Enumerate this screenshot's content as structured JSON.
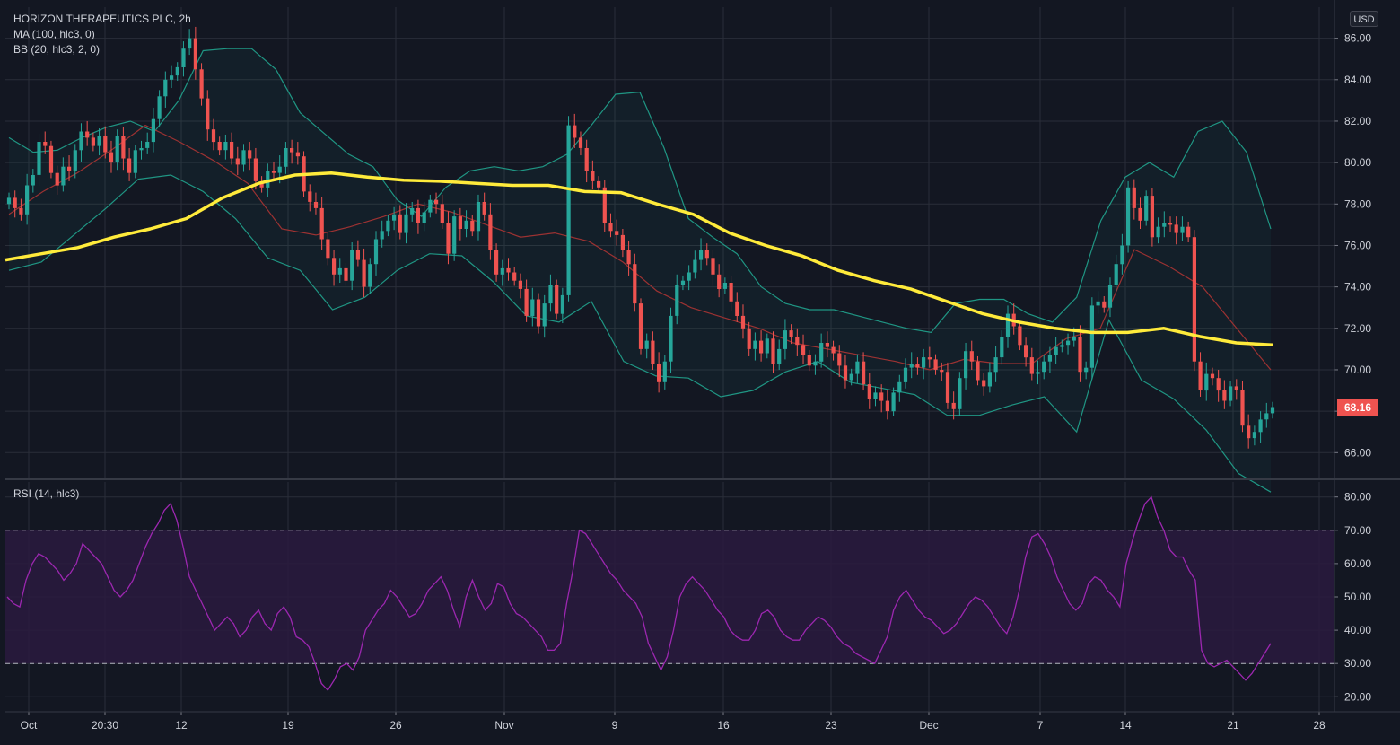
{
  "legend": {
    "symbol": "HORIZON THERAPEUTICS PLC, 2h",
    "ma": "MA (100, hlc3, 0)",
    "bb": "BB (20, hlc3, 2, 0)",
    "rsi": "RSI (14, hlc3)"
  },
  "currency_button": "USD",
  "last_price_tag": "68.16",
  "colors": {
    "background": "#131722",
    "grid": "#2a2e39",
    "up": "#26a69a",
    "down": "#ef5350",
    "ma": "#ffeb3b",
    "bb_band": "#22ab94",
    "bb_basis": "#9c3232",
    "rsi_line": "#9c27b0",
    "rsi_band_fill": "#2a1a3e"
  },
  "chart_data": [
    {
      "type": "candlestick",
      "title": "HORIZON THERAPEUTICS PLC, 2h",
      "x_ticks": [
        "Oct",
        "20:30",
        "12",
        "19",
        "26",
        "Nov",
        "9",
        "16",
        "23",
        "Dec",
        "7",
        "14",
        "21",
        "28"
      ],
      "y_ticks": [
        "86.00",
        "84.00",
        "82.00",
        "80.00",
        "78.00",
        "76.00",
        "74.00",
        "72.00",
        "70.00",
        "68.00",
        "66.00"
      ],
      "ylim": [
        64.8,
        87.5
      ],
      "last_price": 68.16,
      "grid": true,
      "candles_close": [
        78.3,
        77.8,
        77.5,
        78.9,
        79.4,
        81.0,
        80.8,
        79.5,
        78.9,
        79.8,
        79.6,
        80.6,
        81.5,
        81.2,
        80.8,
        81.3,
        80.5,
        80.0,
        81.3,
        80.2,
        79.5,
        80.6,
        80.7,
        81.0,
        82.1,
        83.2,
        84.0,
        84.2,
        84.6,
        85.5,
        86.0,
        84.5,
        83.1,
        81.6,
        81.0,
        80.6,
        81.0,
        80.2,
        79.9,
        80.6,
        80.2,
        79.1,
        78.8,
        79.6,
        79.5,
        79.8,
        80.7,
        80.5,
        80.3,
        78.6,
        78.1,
        77.8,
        76.3,
        75.4,
        74.6,
        74.9,
        74.3,
        75.8,
        75.3,
        74.0,
        75.1,
        76.3,
        76.7,
        77.2,
        77.5,
        76.6,
        77.5,
        77.8,
        77.1,
        77.6,
        78.2,
        78.0,
        77.1,
        75.6,
        77.4,
        76.8,
        77.2,
        76.7,
        78.1,
        77.5,
        75.8,
        74.6,
        74.9,
        74.7,
        74.3,
        73.9,
        72.6,
        73.4,
        72.1,
        73.2,
        74.1,
        72.7,
        73.6,
        81.8,
        81.2,
        80.7,
        79.6,
        79.1,
        78.8,
        77.1,
        76.7,
        76.5,
        75.8,
        75.1,
        73.2,
        71.0,
        71.4,
        70.3,
        69.4,
        70.4,
        72.6,
        74.1,
        74.3,
        74.7,
        75.3,
        75.8,
        75.4,
        74.6,
        73.9,
        74.2,
        73.3,
        72.6,
        72.0,
        71.0,
        71.4,
        70.8,
        71.5,
        70.3,
        71.0,
        71.9,
        71.6,
        71.2,
        70.7,
        70.2,
        70.4,
        71.3,
        71.1,
        70.8,
        70.2,
        69.5,
        69.8,
        70.4,
        69.3,
        68.6,
        68.9,
        68.5,
        68.0,
        68.9,
        69.4,
        70.1,
        70.3,
        70.1,
        70.6,
        70.5,
        70.0,
        69.9,
        68.4,
        68.1,
        69.6,
        70.9,
        70.4,
        69.5,
        69.2,
        69.9,
        70.6,
        71.6,
        72.7,
        72.1,
        71.2,
        70.6,
        69.8,
        69.9,
        70.4,
        70.7,
        71.1,
        71.2,
        71.4,
        71.6,
        69.9,
        70.1,
        73.1,
        73.3,
        73.0,
        74.1,
        75.1,
        76.0,
        78.8,
        77.8,
        77.2,
        78.4,
        76.4,
        76.9,
        77.1,
        77.0,
        76.6,
        76.9,
        76.4,
        70.4,
        69.0,
        69.8,
        69.6,
        69.0,
        68.5,
        69.2,
        69.0,
        67.3,
        66.7,
        67.0,
        67.6,
        67.9,
        68.2
      ],
      "ma100": [
        75.3,
        75.6,
        75.9,
        76.4,
        76.8,
        77.3,
        78.3,
        79.0,
        79.4,
        79.5,
        79.3,
        79.15,
        79.1,
        79.0,
        78.9,
        78.9,
        78.6,
        78.55,
        78.0,
        77.5,
        76.6,
        76.0,
        75.5,
        74.8,
        74.3,
        73.9,
        73.3,
        72.7,
        72.3,
        72.0,
        71.8,
        71.8,
        72.0,
        71.6,
        71.3,
        71.2
      ],
      "bb_upper": [
        81.2,
        80.5,
        80.6,
        81.2,
        81.7,
        82.0,
        81.5,
        83.0,
        85.4,
        85.5,
        85.5,
        84.5,
        82.4,
        81.4,
        80.4,
        79.8,
        78.2,
        77.4,
        78.8,
        79.6,
        79.8,
        79.6,
        79.8,
        80.4,
        81.8,
        83.3,
        83.4,
        80.7,
        77.3,
        76.4,
        75.6,
        74.0,
        73.2,
        72.9,
        72.9,
        72.6,
        72.3,
        72.0,
        71.8,
        73.2,
        73.4,
        73.4,
        72.7,
        72.3,
        73.5,
        77.2,
        79.3,
        80.0,
        79.3,
        81.5,
        82.0,
        80.5,
        76.8
      ],
      "bb_basis": [
        77.5,
        78.6,
        79.5,
        80.6,
        81.8,
        81.0,
        80.1,
        79.0,
        76.8,
        76.5,
        76.9,
        77.4,
        78.0,
        77.6,
        77.0,
        76.4,
        76.6,
        76.2,
        75.2,
        73.8,
        73.0,
        72.5,
        72.0,
        71.3,
        71.0,
        70.7,
        70.4,
        70.0,
        70.5,
        70.3,
        70.3,
        71.5,
        72.0,
        75.8,
        75.0,
        74.0,
        72.0,
        70.0
      ],
      "bb_lower": [
        74.8,
        75.2,
        76.5,
        77.8,
        79.2,
        79.4,
        78.6,
        77.3,
        75.4,
        74.8,
        72.9,
        73.5,
        74.8,
        75.6,
        75.5,
        74.2,
        72.6,
        72.3,
        73.3,
        70.4,
        69.7,
        69.6,
        68.7,
        69.0,
        69.9,
        70.4,
        69.4,
        69.1,
        68.8,
        67.8,
        67.8,
        68.3,
        68.7,
        67.0,
        72.4,
        69.5,
        68.6,
        67.1,
        65.0,
        64.1
      ]
    },
    {
      "type": "line",
      "title": "RSI (14, hlc3)",
      "y_ticks": [
        "80.00",
        "70.00",
        "60.00",
        "50.00",
        "40.00",
        "30.00",
        "20.00"
      ],
      "ylim": [
        15.5,
        84.5
      ],
      "bands": [
        30,
        70
      ],
      "values": [
        50,
        48,
        47,
        55,
        60,
        63,
        62,
        60,
        58,
        55,
        57,
        60,
        66,
        64,
        62,
        60,
        56,
        52,
        50,
        52,
        55,
        60,
        65,
        69,
        72,
        76,
        78,
        73,
        65,
        56,
        52,
        48,
        44,
        40,
        42,
        44,
        42,
        38,
        40,
        44,
        46,
        42,
        40,
        45,
        47,
        44,
        38,
        37,
        35,
        30,
        24,
        22,
        25,
        29,
        30,
        28,
        32,
        40,
        43,
        46,
        48,
        52,
        50,
        47,
        44,
        45,
        48,
        52,
        54,
        56,
        52,
        46,
        41,
        50,
        55,
        50,
        46,
        48,
        54,
        53,
        48,
        45,
        44,
        42,
        40,
        38,
        34,
        34,
        36,
        48,
        58,
        70,
        69,
        66,
        63,
        60,
        57,
        55,
        52,
        50,
        48,
        44,
        36,
        32,
        28,
        32,
        40,
        50,
        54,
        56,
        54,
        52,
        49,
        46,
        44,
        40,
        38,
        37,
        37,
        40,
        45,
        46,
        44,
        40,
        38,
        37,
        37,
        40,
        42,
        44,
        43,
        41,
        38,
        36,
        35,
        33,
        32,
        31,
        30,
        34,
        38,
        46,
        50,
        52,
        49,
        46,
        44,
        43,
        41,
        39,
        40,
        42,
        45,
        48,
        50,
        49,
        47,
        44,
        41,
        39,
        44,
        52,
        62,
        68,
        69,
        66,
        62,
        56,
        52,
        48,
        46,
        48,
        54,
        56,
        55,
        52,
        50,
        47,
        60,
        67,
        73,
        78,
        80,
        74,
        70,
        64,
        62,
        62,
        58,
        55,
        34,
        30,
        29,
        30,
        31,
        29,
        27,
        25,
        27,
        30,
        33,
        36
      ]
    }
  ]
}
